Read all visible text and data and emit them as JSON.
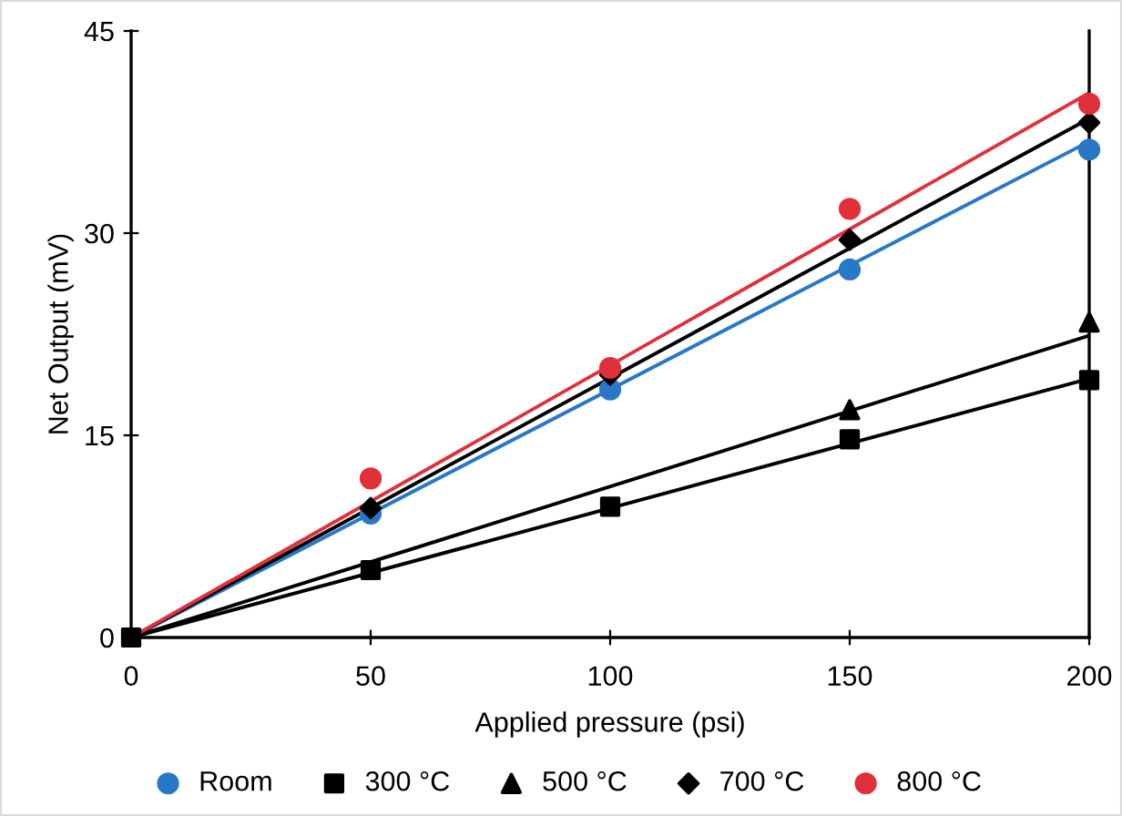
{
  "chart_data": {
    "type": "scatter",
    "xlabel": "Applied pressure (psi)",
    "ylabel": "Net Output (mV)",
    "xlim": [
      0,
      200
    ],
    "xticks": [
      0,
      50,
      100,
      150,
      200
    ],
    "ylim": [
      0,
      45
    ],
    "yticks": [
      0,
      15,
      30,
      45
    ],
    "grid": false,
    "legend": "bottom",
    "series": [
      {
        "name": "Room",
        "color": "#2878c8",
        "marker": "circle",
        "x": [
          50,
          100,
          150,
          200
        ],
        "values": [
          9.2,
          18.4,
          27.3,
          36.2
        ]
      },
      {
        "name": "300 °C",
        "color": "#000000",
        "marker": "square",
        "x": [
          0,
          50,
          100,
          150,
          200
        ],
        "values": [
          0,
          5.0,
          9.7,
          14.7,
          19.1
        ]
      },
      {
        "name": "500 °C",
        "color": "#000000",
        "marker": "triangle",
        "x": [
          150,
          200
        ],
        "values": [
          16.9,
          23.4
        ]
      },
      {
        "name": "700 °C",
        "color": "#000000",
        "marker": "diamond",
        "x": [
          50,
          100,
          150,
          200
        ],
        "values": [
          9.6,
          19.5,
          29.5,
          38.2
        ]
      },
      {
        "name": "800 °C",
        "color": "#e0303a",
        "marker": "circle",
        "x": [
          50,
          100,
          150,
          200
        ],
        "values": [
          11.8,
          20.0,
          31.8,
          39.6
        ]
      },
      {
        "type": "line",
        "color": "#2878c8",
        "x": [
          0,
          200
        ],
        "values": [
          0,
          36.8
        ]
      },
      {
        "type": "line",
        "color": "#000000",
        "x": [
          0,
          200
        ],
        "values": [
          0,
          19.2
        ]
      },
      {
        "type": "line",
        "color": "#000000",
        "x": [
          0,
          200
        ],
        "values": [
          0,
          22.4
        ]
      },
      {
        "type": "line",
        "color": "#000000",
        "x": [
          0,
          200
        ],
        "values": [
          0,
          38.5
        ]
      },
      {
        "type": "line",
        "color": "#e0303a",
        "x": [
          0,
          200
        ],
        "values": [
          0,
          40.4
        ]
      }
    ]
  }
}
